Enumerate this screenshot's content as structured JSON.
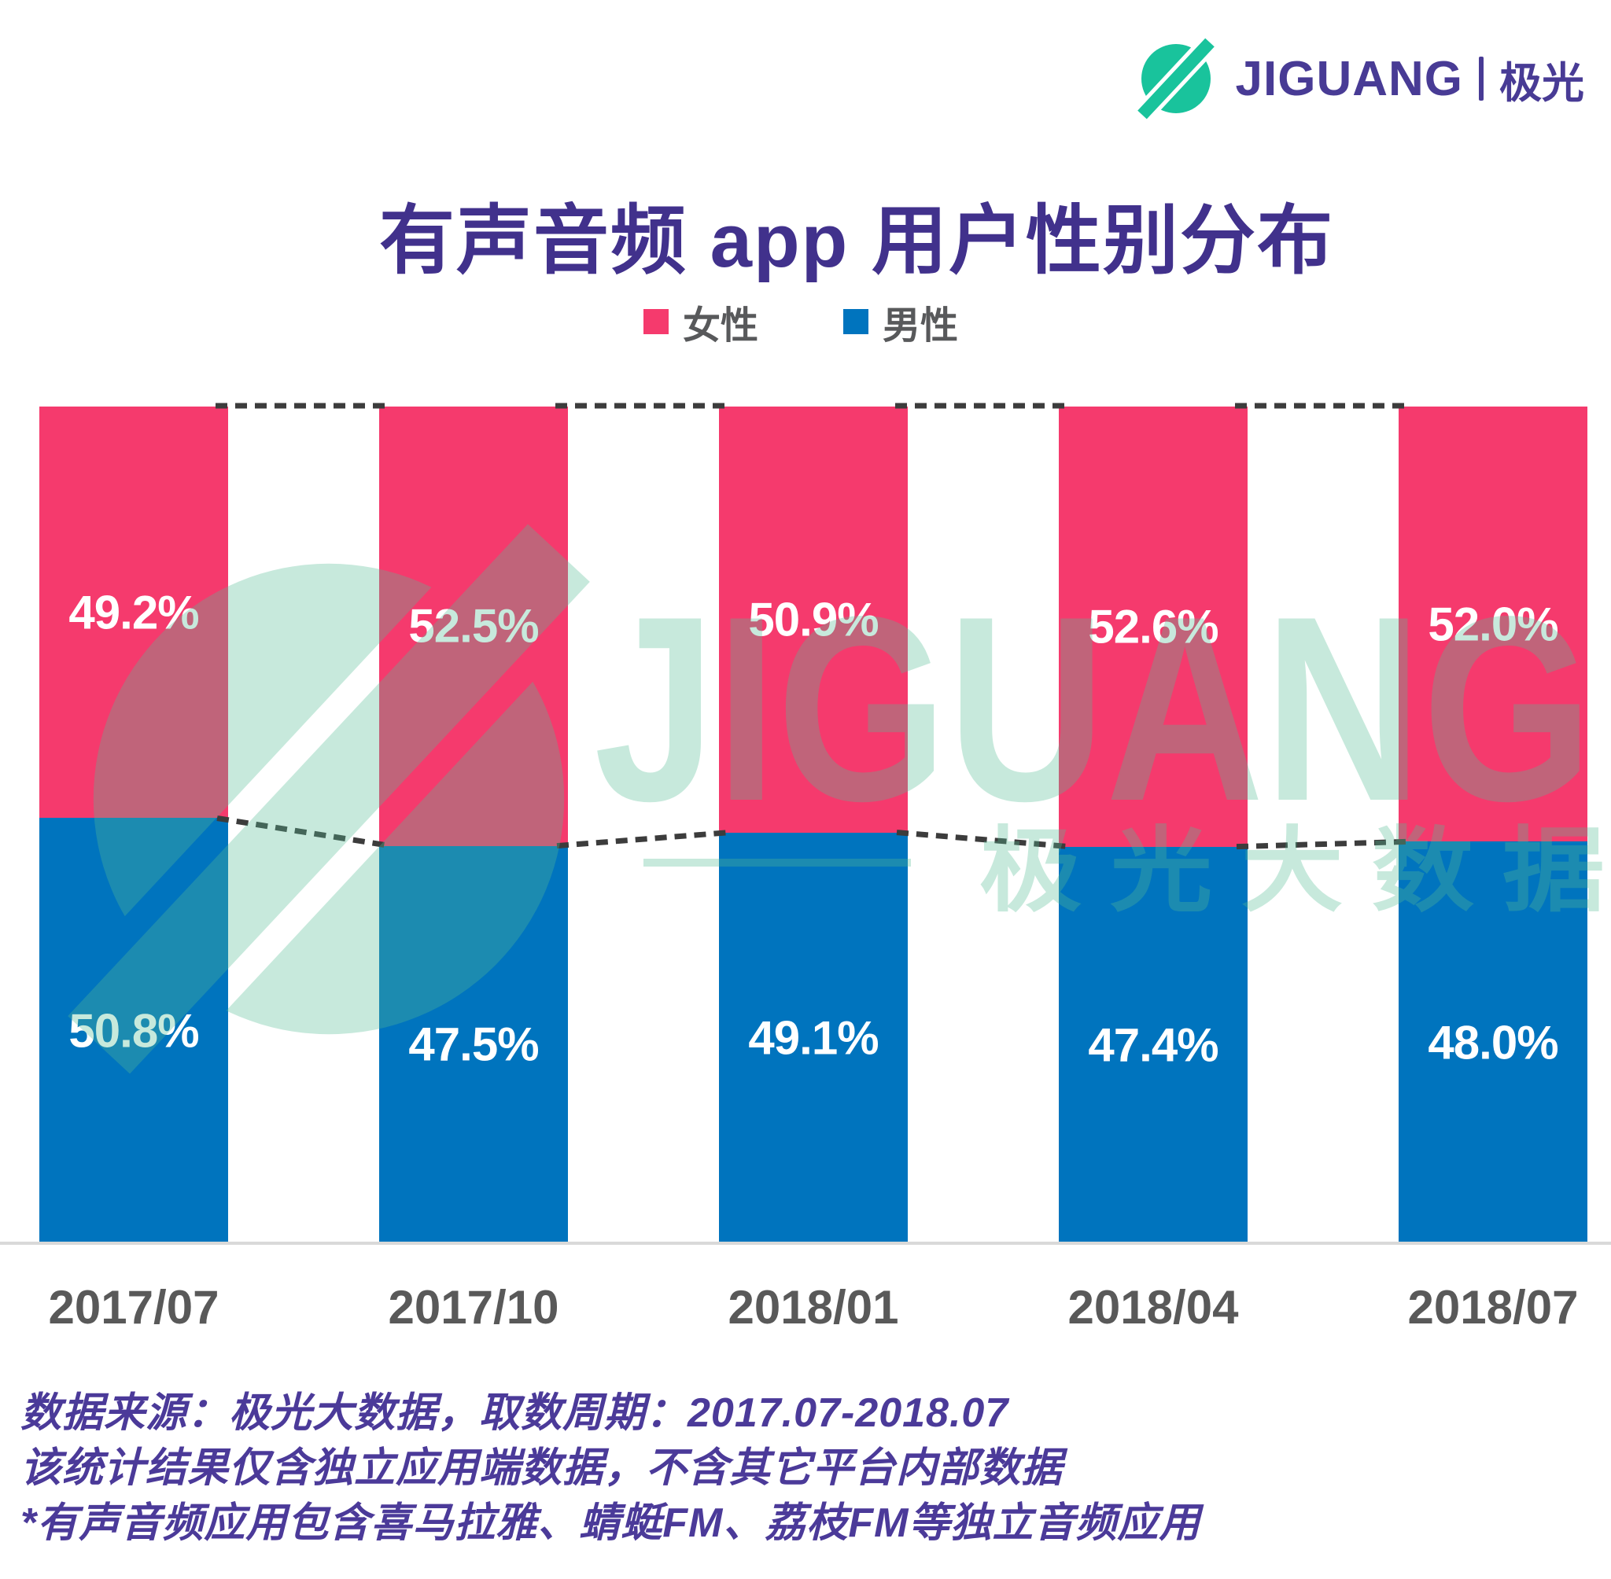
{
  "logo": {
    "brand": "JIGUANG",
    "brand_cn": "极光"
  },
  "header": {
    "title": "有声音频 app 用户性别分布"
  },
  "chart_data": {
    "type": "bar",
    "subtype": "100%-stacked-column",
    "title": "有声音频 app 用户性别分布",
    "categories": [
      "2017/07",
      "2017/10",
      "2018/01",
      "2018/04",
      "2018/07"
    ],
    "series": [
      {
        "name": "女性",
        "color": "#F53A6D",
        "values": [
          49.2,
          52.5,
          50.9,
          52.6,
          52.0
        ]
      },
      {
        "name": "男性",
        "color": "#0074BE",
        "values": [
          50.8,
          47.5,
          49.1,
          47.4,
          48.0
        ]
      }
    ],
    "value_label_format": "0.0%",
    "stack_order_top_to_bottom": [
      "女性",
      "男性"
    ],
    "ylim": [
      0,
      100
    ],
    "grid": false,
    "legend_position": "top",
    "connector_lines": true,
    "xlabel": "",
    "ylabel": ""
  },
  "watermark": {
    "text_en": "JIGUANG",
    "text_cn": "极 光 大 数 据"
  },
  "footer": {
    "lines": [
      "数据来源：极光大数据，取数周期：2017.07-2018.07",
      "该统计结果仅含独立应用端数据，不含其它平台内部数据",
      "*有声音频应用包含喜马拉雅、蜻蜓FM、荔枝FM等独立音频应用"
    ]
  },
  "colors": {
    "pink": "#F53A6D",
    "blue": "#0074BE",
    "title": "#41318C",
    "legendText": "#58595B",
    "axisLabel": "#595959",
    "axisLine": "#D9D9D9",
    "dash": "#3C3C3C",
    "footer": "#4B3A99",
    "logoPurple": "#483B95",
    "logoTeal": "#19C39C",
    "watermark": "#54BC96"
  }
}
